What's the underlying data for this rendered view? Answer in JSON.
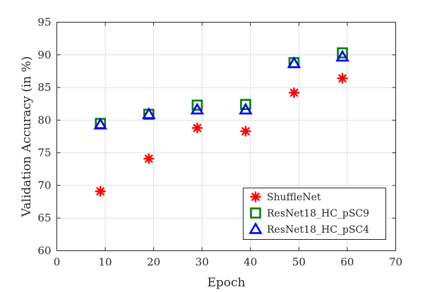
{
  "chart_data": {
    "type": "scatter",
    "xlabel": "Epoch",
    "ylabel": "Validation Accuracy (in %)",
    "xlim": [
      0,
      70
    ],
    "ylim": [
      60,
      95
    ],
    "xticks": [
      0,
      10,
      20,
      30,
      40,
      50,
      60,
      70
    ],
    "yticks": [
      60,
      65,
      70,
      75,
      80,
      85,
      90,
      95
    ],
    "grid": true,
    "legend_position": "bottom-right",
    "series": [
      {
        "name": "ShuffleNet",
        "marker": "asterisk",
        "color": "#ff0000",
        "x": [
          9,
          19,
          29,
          39,
          49,
          59
        ],
        "y": [
          69.1,
          74.1,
          78.8,
          78.3,
          84.2,
          86.4
        ]
      },
      {
        "name": "ResNet18_HC_pSC9",
        "marker": "square",
        "color": "#008000",
        "x": [
          9,
          19,
          29,
          39,
          49,
          59
        ],
        "y": [
          79.5,
          80.9,
          82.3,
          82.4,
          88.8,
          90.3
        ]
      },
      {
        "name": "ResNet18_HC_pSC4",
        "marker": "triangle",
        "color": "#0000ff",
        "x": [
          9,
          19,
          29,
          39,
          49,
          59
        ],
        "y": [
          79.3,
          80.9,
          81.6,
          81.6,
          88.7,
          89.7
        ]
      }
    ]
  }
}
